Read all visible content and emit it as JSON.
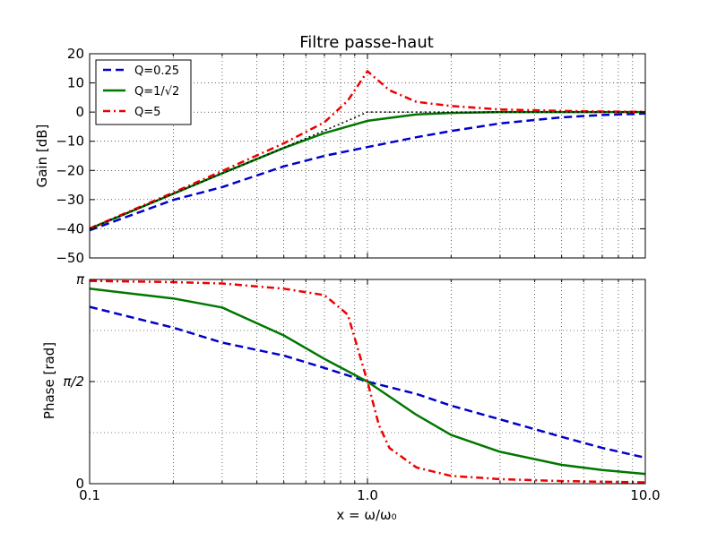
{
  "chart_data": [
    {
      "type": "line",
      "panel": "gain",
      "title": "Filtre passe-haut",
      "xlabel": "",
      "ylabel": "Gain [dB]",
      "xscale": "log",
      "xlim": [
        0.1,
        10.0
      ],
      "ylim": [
        -50,
        20
      ],
      "yticks": [
        20,
        10,
        0,
        -10,
        -20,
        -30,
        -40,
        -50
      ],
      "ytick_labels": [
        "20",
        "10",
        "0",
        "−10",
        "−20",
        "−30",
        "−40",
        "−50"
      ],
      "grid": true,
      "legend_position": "top-left",
      "series": [
        {
          "name": "Q=0.25",
          "style": "dashed",
          "color": "#0000cc",
          "x": [
            0.1,
            0.2,
            0.3,
            0.5,
            0.7,
            1.0,
            1.5,
            2,
            3,
            5,
            7,
            10
          ],
          "y": [
            -40.5,
            -30.1,
            -25.7,
            -18.6,
            -15.0,
            -12.0,
            -8.6,
            -6.5,
            -3.9,
            -1.8,
            -1.0,
            -0.5
          ]
        },
        {
          "name": "Q=1/√2",
          "style": "solid",
          "color": "#007700",
          "x": [
            0.1,
            0.2,
            0.3,
            0.5,
            0.7,
            1.0,
            1.5,
            2,
            3,
            5,
            7,
            10
          ],
          "y": [
            -40.0,
            -28.0,
            -21.0,
            -12.3,
            -7.2,
            -3.0,
            -0.8,
            -0.3,
            0,
            0,
            0,
            0
          ]
        },
        {
          "name": "Q=5",
          "style": "dashdot",
          "color": "#ee0000",
          "x": [
            0.1,
            0.2,
            0.3,
            0.5,
            0.7,
            0.85,
            1.0,
            1.2,
            1.5,
            2,
            3,
            5,
            7,
            10
          ],
          "y": [
            -39.9,
            -27.6,
            -20.2,
            -10.7,
            -3.5,
            3.9,
            14.0,
            7.5,
            3.5,
            2.1,
            0.9,
            0.4,
            0.2,
            0.1
          ]
        },
        {
          "name": "",
          "style": "dotted",
          "color": "#000000",
          "x": [
            0.1,
            0.3,
            0.6,
            0.8,
            1.0,
            2,
            10
          ],
          "y": [
            -40,
            -21,
            -9,
            -4,
            0,
            0,
            0
          ]
        }
      ]
    },
    {
      "type": "line",
      "panel": "phase",
      "title": "",
      "xlabel": "x = ω/ω₀",
      "ylabel": "Phase [rad]",
      "xscale": "log",
      "xlim": [
        0.1,
        10.0
      ],
      "ylim": [
        0,
        3.14159
      ],
      "xticks": [
        0.1,
        1.0,
        10.0
      ],
      "xtick_labels": [
        "0.1",
        "1.0",
        "10.0"
      ],
      "yticks": [
        0,
        1.5708,
        3.14159
      ],
      "ytick_labels": [
        "0",
        "π/2",
        "π"
      ],
      "grid": true,
      "series": [
        {
          "name": "Q=0.25",
          "style": "dashed",
          "color": "#0000cc",
          "x": [
            0.1,
            0.2,
            0.3,
            0.5,
            0.7,
            1.0,
            1.5,
            2,
            3,
            5,
            7,
            10
          ],
          "y": [
            2.72,
            2.4,
            2.17,
            1.97,
            1.78,
            1.57,
            1.38,
            1.2,
            0.99,
            0.72,
            0.55,
            0.4
          ]
        },
        {
          "name": "Q=1/√2",
          "style": "solid",
          "color": "#007700",
          "x": [
            0.1,
            0.2,
            0.3,
            0.5,
            0.7,
            1.0,
            1.5,
            2,
            3,
            5,
            7,
            10
          ],
          "y": [
            3.0,
            2.85,
            2.71,
            2.28,
            1.92,
            1.57,
            1.06,
            0.75,
            0.49,
            0.29,
            0.21,
            0.15
          ]
        },
        {
          "name": "Q=5",
          "style": "dashdot",
          "color": "#ee0000",
          "x": [
            0.1,
            0.2,
            0.3,
            0.5,
            0.7,
            0.85,
            1.0,
            1.1,
            1.2,
            1.5,
            2,
            3,
            5,
            7,
            10
          ],
          "y": [
            3.12,
            3.1,
            3.08,
            3.0,
            2.9,
            2.6,
            1.57,
            0.9,
            0.55,
            0.25,
            0.12,
            0.07,
            0.04,
            0.03,
            0.02
          ]
        }
      ]
    }
  ]
}
